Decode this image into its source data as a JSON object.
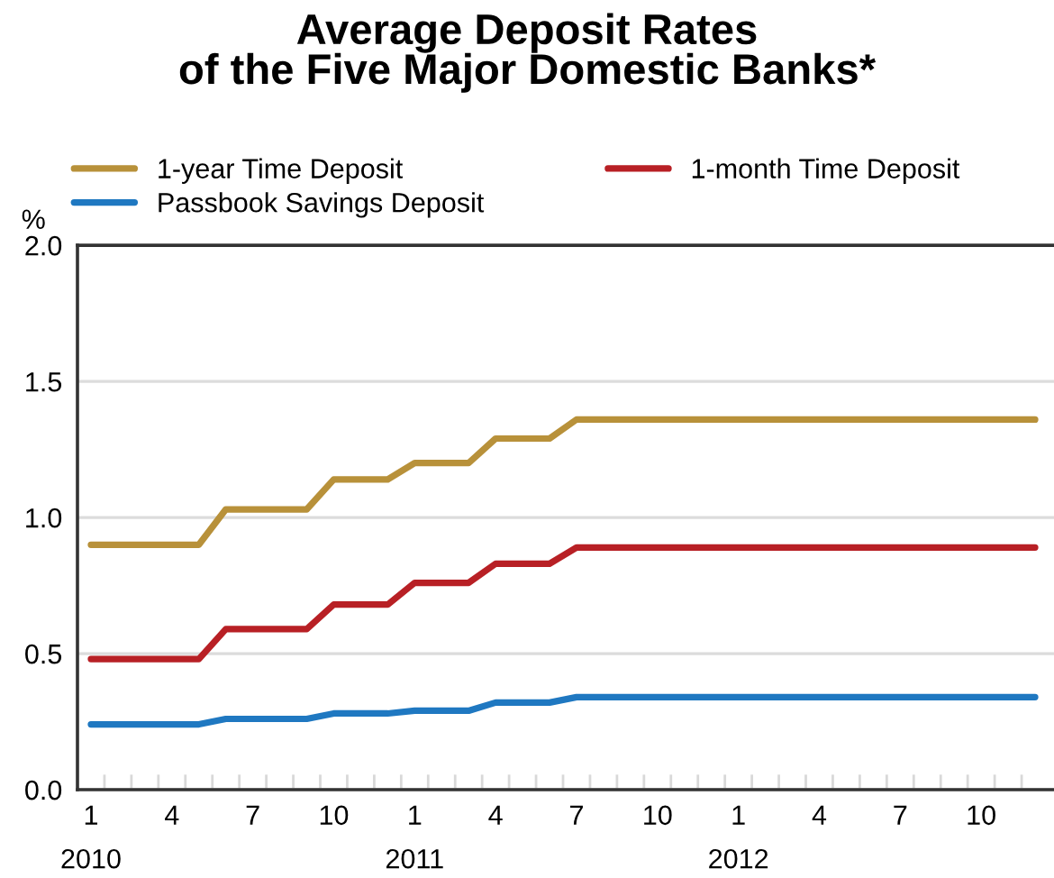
{
  "chart_data": {
    "type": "line",
    "title": "Average Deposit Rates\nof the Five Major Domestic Banks*",
    "ylabel": "%",
    "categories": [
      "1\n2010",
      null,
      null,
      "4",
      null,
      null,
      "7",
      null,
      null,
      "10",
      null,
      null,
      "1\n2011",
      null,
      null,
      "4",
      null,
      null,
      "7",
      null,
      null,
      "10",
      null,
      null,
      "1\n2012",
      null,
      null,
      "4",
      null,
      null,
      "7",
      null,
      null,
      "10",
      null,
      null
    ],
    "series": [
      {
        "name": "1-year Time Deposit",
        "color": "#b8913a",
        "values": [
          0.9,
          0.9,
          0.9,
          0.9,
          0.9,
          1.03,
          1.03,
          1.03,
          1.03,
          1.14,
          1.14,
          1.14,
          1.2,
          1.2,
          1.2,
          1.29,
          1.29,
          1.29,
          1.36,
          1.36,
          1.36,
          1.36,
          1.36,
          1.36,
          1.36,
          1.36,
          1.36,
          1.36,
          1.36,
          1.36,
          1.36,
          1.36,
          1.36,
          1.36,
          1.36,
          1.36
        ]
      },
      {
        "name": "1-month Time Deposit",
        "color": "#b82025",
        "values": [
          0.48,
          0.48,
          0.48,
          0.48,
          0.48,
          0.59,
          0.59,
          0.59,
          0.59,
          0.68,
          0.68,
          0.68,
          0.76,
          0.76,
          0.76,
          0.83,
          0.83,
          0.83,
          0.89,
          0.89,
          0.89,
          0.89,
          0.89,
          0.89,
          0.89,
          0.89,
          0.89,
          0.89,
          0.89,
          0.89,
          0.89,
          0.89,
          0.89,
          0.89,
          0.89,
          0.89
        ]
      },
      {
        "name": "Passbook Savings Deposit",
        "color": "#1f78c1",
        "values": [
          0.24,
          0.24,
          0.24,
          0.24,
          0.24,
          0.26,
          0.26,
          0.26,
          0.26,
          0.28,
          0.28,
          0.28,
          0.29,
          0.29,
          0.29,
          0.32,
          0.32,
          0.32,
          0.34,
          0.34,
          0.34,
          0.34,
          0.34,
          0.34,
          0.34,
          0.34,
          0.34,
          0.34,
          0.34,
          0.34,
          0.34,
          0.34,
          0.34,
          0.34,
          0.34,
          0.34
        ]
      }
    ],
    "ylim": [
      0.0,
      2.0
    ],
    "yticks": [
      {
        "value": 0,
        "label": "0.0"
      },
      {
        "value": 0.5,
        "label": "0.5"
      },
      {
        "value": 1.0,
        "label": "1.0"
      },
      {
        "value": 1.5,
        "label": "1.5"
      },
      {
        "value": 2.0,
        "label": "2.0"
      }
    ],
    "grid": "y",
    "legend": "top",
    "marker": "none",
    "line_style": "solid"
  }
}
